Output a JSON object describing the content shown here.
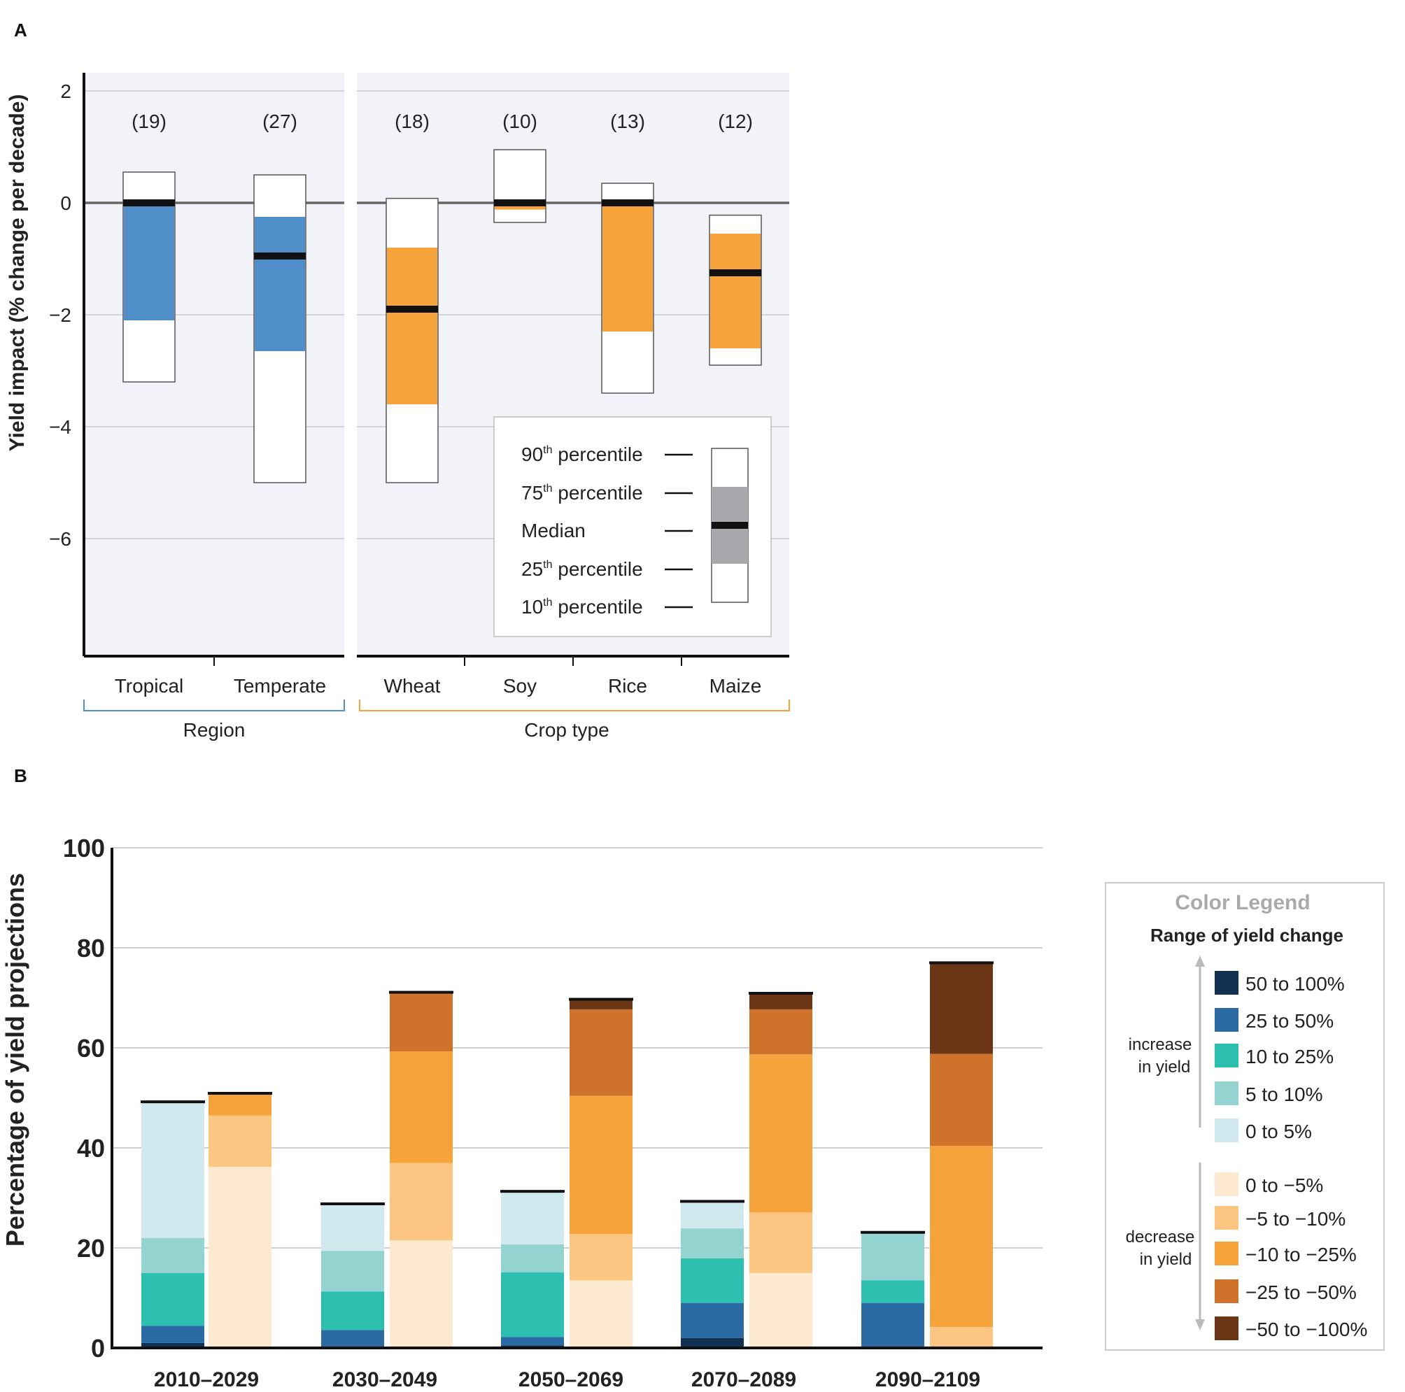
{
  "chart_data": [
    {
      "panel": "A",
      "type": "boxplot",
      "ylabel": "Yield impact (% change per decade)",
      "ylim": [
        -8.2,
        2.4
      ],
      "yticks": [
        2,
        0,
        -2,
        -4,
        -6
      ],
      "ytick_labels": [
        "2",
        "0",
        "−2",
        "−4",
        "−6"
      ],
      "groups": [
        {
          "name": "Region",
          "color": "#4f8ec8",
          "items": [
            {
              "label": "Tropical",
              "n": "(19)",
              "p10": -3.2,
              "p25": -2.1,
              "median": 0.0,
              "p75": 0.0,
              "p90": 0.55
            },
            {
              "label": "Temperate",
              "n": "(27)",
              "p10": -5.0,
              "p25": -2.65,
              "median": -0.95,
              "p75": -0.25,
              "p90": 0.5
            }
          ]
        },
        {
          "name": "Crop type",
          "color": "#f6a33b",
          "items": [
            {
              "label": "Wheat",
              "n": "(18)",
              "p10": -5.0,
              "p25": -3.6,
              "median": -1.9,
              "p75": -0.8,
              "p90": 0.08
            },
            {
              "label": "Soy",
              "n": "(10)",
              "p10": -0.35,
              "p25": -0.12,
              "median": 0.0,
              "p75": 0.0,
              "p90": 0.95
            },
            {
              "label": "Rice",
              "n": "(13)",
              "p10": -3.4,
              "p25": -2.3,
              "median": 0.0,
              "p75": 0.0,
              "p90": 0.35
            },
            {
              "label": "Maize",
              "n": "(12)",
              "p10": -2.9,
              "p25": -2.6,
              "median": -1.25,
              "p75": -0.55,
              "p90": -0.22
            }
          ]
        }
      ],
      "legend": {
        "items": [
          {
            "sup_num": "90",
            "sup": "th",
            "text": "percentile"
          },
          {
            "sup_num": "75",
            "sup": "th",
            "text": "percentile"
          },
          {
            "sup_num": "",
            "sup": "",
            "text": "Median"
          },
          {
            "sup_num": "25",
            "sup": "th",
            "text": "percentile"
          },
          {
            "sup_num": "10",
            "sup": "th",
            "text": "percentile"
          }
        ]
      }
    },
    {
      "panel": "B",
      "type": "stacked-bar",
      "ylabel": "Percentage of yield projections",
      "ylim": [
        0,
        100
      ],
      "yticks": [
        0,
        20,
        40,
        60,
        80,
        100
      ],
      "periods": [
        "2010–2029",
        "2030–2049",
        "2050–2069",
        "2070–2089",
        "2090–2109"
      ],
      "increase_categories": [
        "50 to 100%",
        "25 to 50%",
        "10 to 25%",
        "5 to 10%",
        "0 to 5%"
      ],
      "decrease_categories": [
        "0 to −5%",
        "−5 to −10%",
        "−10 to −25%",
        "−25 to −50%",
        "−50 to −100%"
      ],
      "increase_colors": [
        "#12304f",
        "#2b6aa2",
        "#2dbfb0",
        "#93d4d1",
        "#cfe9ee"
      ],
      "decrease_colors": [
        "#fde9cf",
        "#fbc582",
        "#f6a33b",
        "#cf722b",
        "#6b3615"
      ],
      "increase": [
        [
          1,
          3.4,
          10.6,
          7,
          27
        ],
        [
          0,
          3.6,
          7.7,
          8.1,
          9.2
        ],
        [
          0.5,
          1.7,
          12.9,
          5.6,
          10.4
        ],
        [
          2,
          7,
          8.9,
          6,
          5.2
        ],
        [
          0,
          9,
          4.5,
          9.4,
          0
        ]
      ],
      "decrease": [
        [
          36.2,
          10.3,
          4.2,
          0,
          0
        ],
        [
          21.5,
          15.5,
          22.3,
          11.6,
          0
        ],
        [
          13.5,
          9.3,
          27.6,
          17.3,
          1.8
        ],
        [
          15,
          12.1,
          31.6,
          9,
          3
        ],
        [
          0,
          4.2,
          36.2,
          18.4,
          18
        ]
      ]
    }
  ],
  "panel_a_label": "A",
  "panel_b_label": "B",
  "panel_a_group_labels": [
    "Region",
    "Crop type"
  ],
  "legend_b": {
    "title": "Color Legend",
    "subtitle": "Range of yield change",
    "increase_label_1": "increase",
    "increase_label_2": "in yield",
    "decrease_label_1": "decrease",
    "decrease_label_2": "in yield"
  }
}
